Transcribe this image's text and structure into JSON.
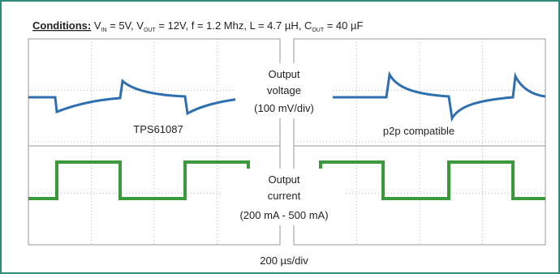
{
  "conditions": {
    "label": "Conditions:",
    "items": [
      {
        "main": "V",
        "sub": "IN",
        "rest": " = 5V, "
      },
      {
        "main": "V",
        "sub": "OUT",
        "rest": " = 12V, f = 1.2 Mhz, L = 4.7 µH, "
      },
      {
        "main": "C",
        "sub": "OUT",
        "rest": " = 40 µF"
      }
    ]
  },
  "labels": {
    "voltage": [
      "Output",
      "voltage",
      "(100 mV/div)"
    ],
    "current": [
      "Output",
      "current",
      "(200 mA - 500 mA)"
    ],
    "left_device": "TPS61087",
    "right_device": "p2p compatible",
    "timebase": "200 µs/div"
  }
}
